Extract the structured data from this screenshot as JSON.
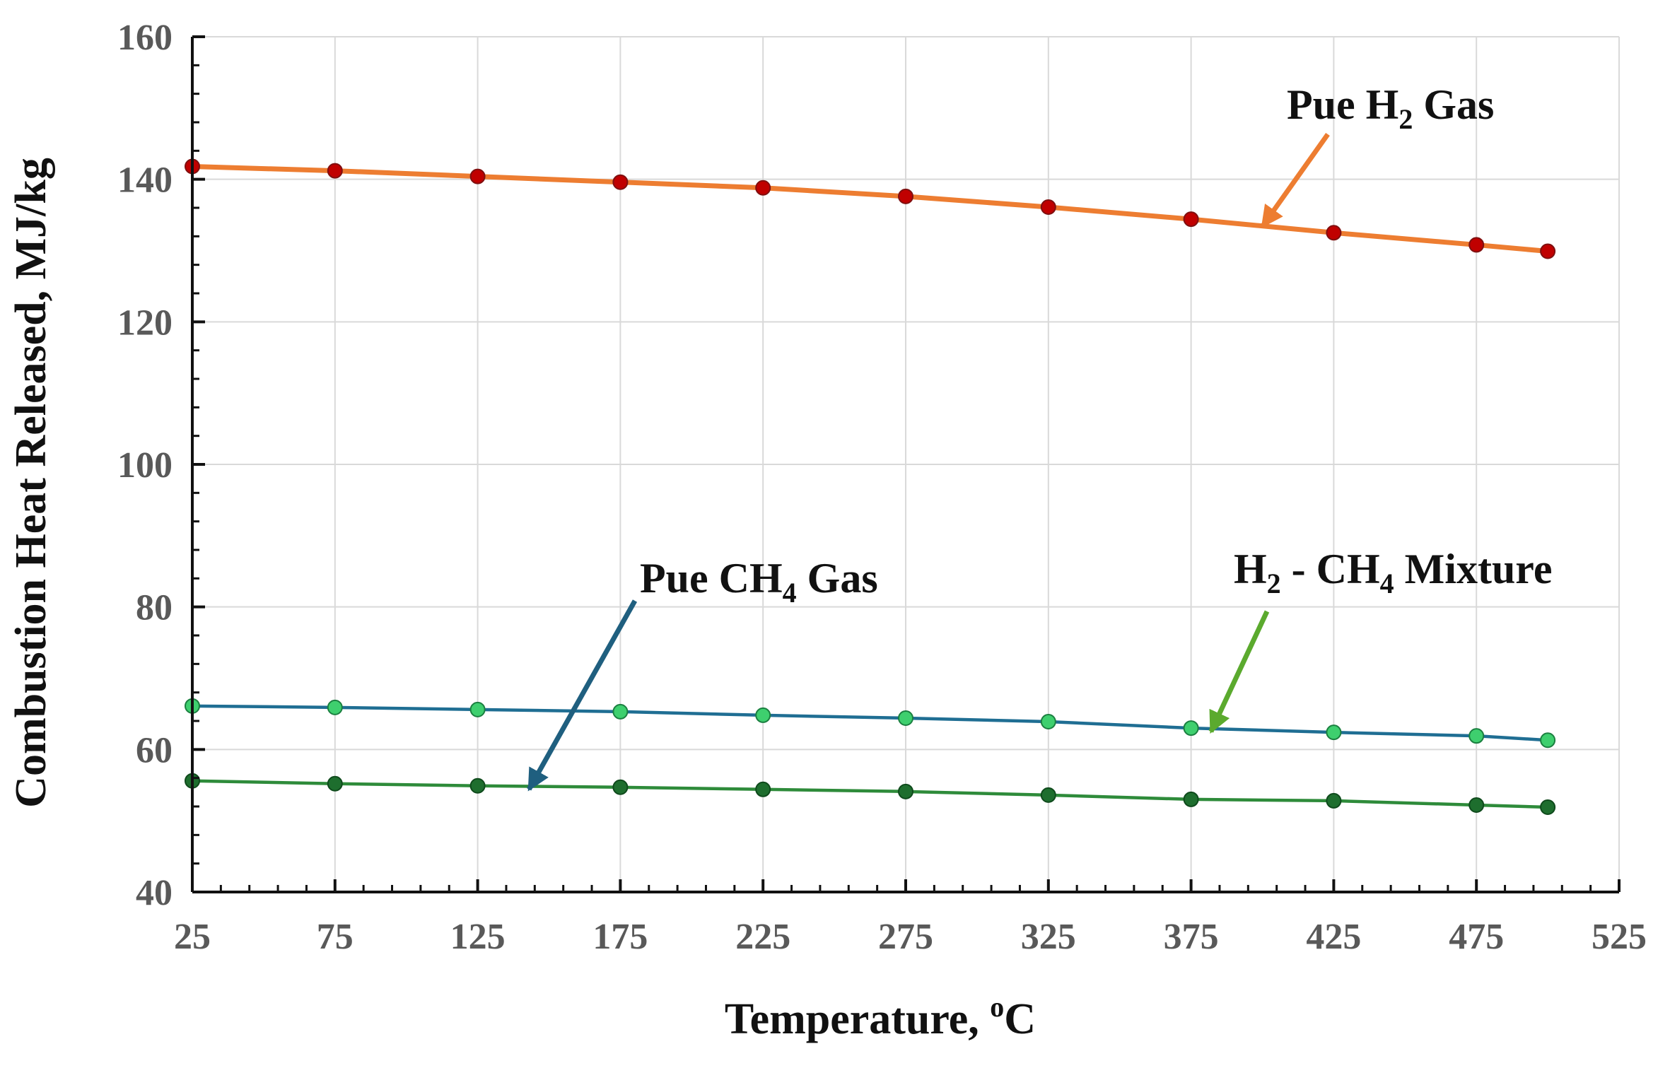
{
  "chart_data": {
    "type": "line",
    "title": "",
    "xlabel": {
      "main": "Temperature, ",
      "sup": "o",
      "tail": "C"
    },
    "ylabel": "Combustion Heat Released, MJ/kg",
    "xlim": [
      25,
      525
    ],
    "ylim": [
      40,
      160
    ],
    "xticks": [
      25,
      75,
      125,
      175,
      225,
      275,
      325,
      375,
      425,
      475,
      525
    ],
    "yticks": [
      40,
      60,
      80,
      100,
      120,
      140,
      160
    ],
    "grid": true,
    "x": [
      25,
      75,
      125,
      175,
      225,
      275,
      325,
      375,
      425,
      475,
      500
    ],
    "series": [
      {
        "id": "h2",
        "values": [
          141.8,
          141.2,
          140.4,
          139.6,
          138.8,
          137.6,
          136.1,
          134.4,
          132.5,
          130.8,
          129.9
        ],
        "line_color": "#ED7D31",
        "marker_color": "#C00000",
        "marker_stroke": "#7F1010"
      },
      {
        "id": "mixture",
        "values": [
          66.1,
          65.9,
          65.6,
          65.3,
          64.8,
          64.4,
          63.9,
          63.0,
          62.4,
          61.9,
          61.3
        ],
        "line_color": "#1F6E93",
        "marker_color": "#3ECF6E",
        "marker_stroke": "#1B7F40"
      },
      {
        "id": "ch4",
        "values": [
          55.6,
          55.2,
          54.9,
          54.7,
          54.4,
          54.1,
          53.6,
          53.0,
          52.8,
          52.2,
          51.9
        ],
        "line_color": "#2E8B3A",
        "marker_color": "#1E6E2E",
        "marker_stroke": "#0F4A1C"
      }
    ],
    "annotations": [
      {
        "id": "h2",
        "parts": [
          "Pue H",
          "2",
          " Gas"
        ],
        "arrow_color": "#ED7D31",
        "arrow_to": [
          400,
          133.4
        ]
      },
      {
        "id": "ch4",
        "parts": [
          "Pue CH",
          "4",
          " Gas"
        ],
        "arrow_color": "#1F5F7F",
        "arrow_to": [
          143,
          54.4
        ]
      },
      {
        "id": "mixture",
        "parts": [
          "H",
          "2",
          " - CH",
          "4",
          " Mixture"
        ],
        "arrow_color": "#5BAA2E",
        "arrow_to": [
          382,
          62.5
        ]
      }
    ]
  }
}
